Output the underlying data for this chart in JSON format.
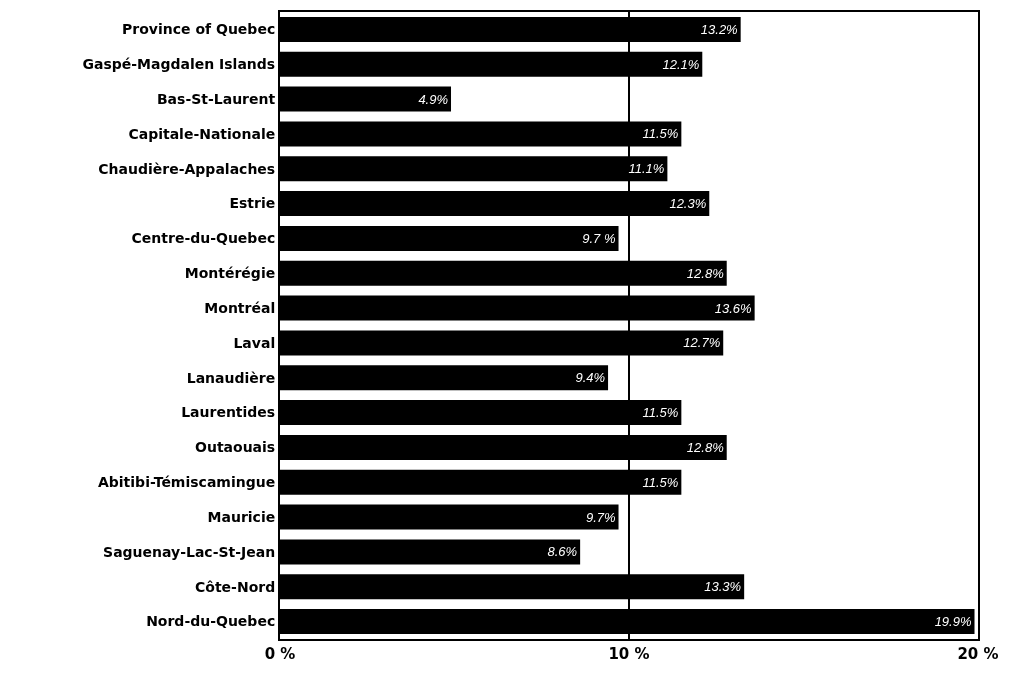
{
  "chart_data": {
    "type": "bar",
    "orientation": "horizontal",
    "categories": [
      "Province of Quebec",
      "Gaspé-Magdalen Islands",
      "Bas-St-Laurent",
      "Capitale-Nationale",
      "Chaudière-Appalaches",
      "Estrie",
      "Centre-du-Quebec",
      "Montérégie",
      "Montréal",
      "Laval",
      "Lanaudière",
      "Laurentides",
      "Outaouais",
      "Abitibi-Témiscamingue",
      "Mauricie",
      "Saguenay-Lac-St-Jean",
      "Côte-Nord",
      "Nord-du-Quebec"
    ],
    "values": [
      13.2,
      12.1,
      4.9,
      11.5,
      11.1,
      12.3,
      9.7,
      12.8,
      13.6,
      12.7,
      9.4,
      11.5,
      12.8,
      11.5,
      9.7,
      8.6,
      13.3,
      19.9
    ],
    "value_labels": [
      "13.2%",
      "12.1%",
      "4.9%",
      "11.5%",
      "11.1%",
      "12.3%",
      "9.7 %",
      "12.8%",
      "13.6%",
      "12.7%",
      "9.4%",
      "11.5%",
      "12.8%",
      "11.5%",
      "9.7%",
      "8.6%",
      "13.3%",
      "19.9%"
    ],
    "color": "#000000",
    "xlim": [
      0,
      20
    ],
    "xticks": [
      {
        "value": 0,
        "label": "0 %"
      },
      {
        "value": 10,
        "label": "10 %"
      },
      {
        "value": 20,
        "label": "20 %"
      }
    ],
    "grid": "x"
  }
}
